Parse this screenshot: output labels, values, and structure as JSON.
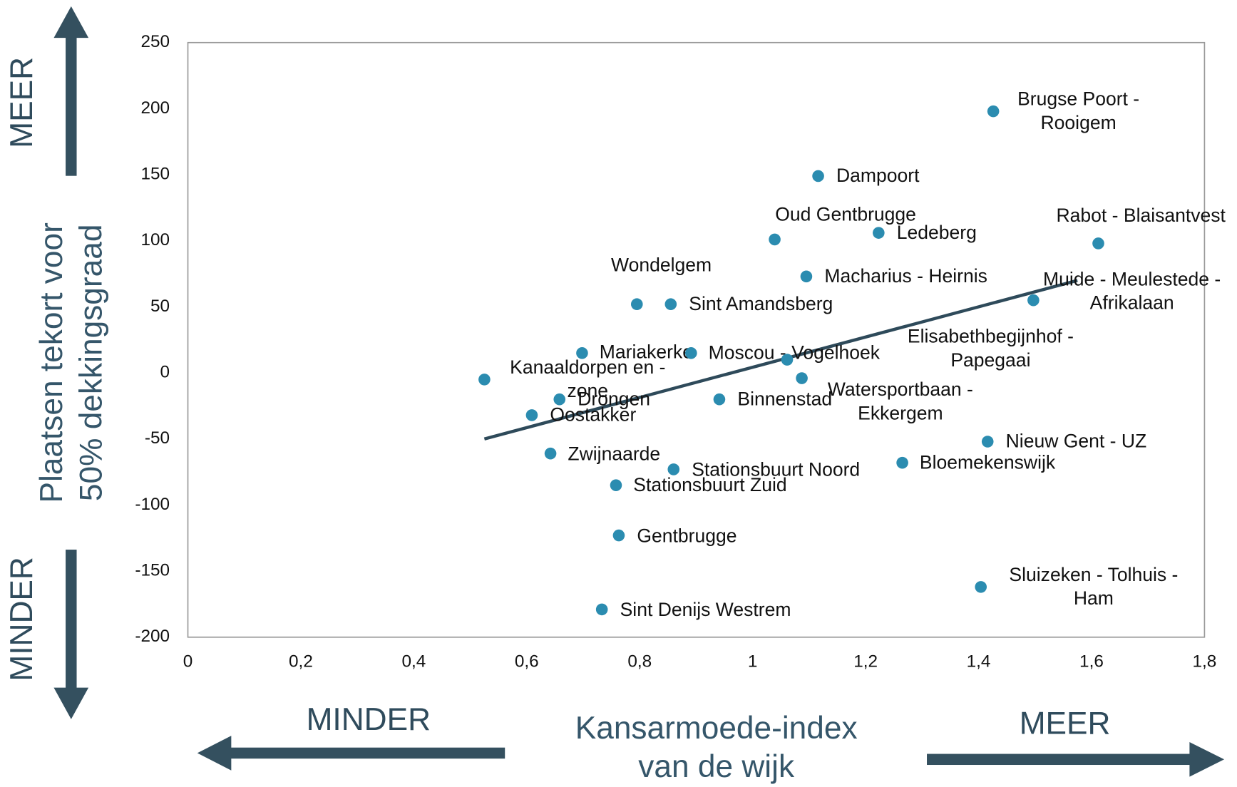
{
  "chart_data": {
    "type": "scatter",
    "x_label": [
      "Kansarmoede-index",
      "van de wijk"
    ],
    "y_label": [
      "Plaatsen tekort voor",
      "50% dekkingsgraad"
    ],
    "annotations": {
      "y_more": "MEER",
      "y_less": "MINDER",
      "x_less": "MINDER",
      "x_more": "MEER"
    },
    "color": "#2b8cb0",
    "trendline": {
      "color": "#2e4a5a",
      "x": [
        0.525,
        1.575
      ],
      "y": [
        -50,
        70
      ]
    },
    "labels": [
      [
        "Brugse Poort -",
        "Rooigem"
      ],
      [
        "Dampoort"
      ],
      [
        "Oud Gentbrugge"
      ],
      [
        "Ledeberg"
      ],
      [
        "Rabot - Blaisantvest"
      ],
      [
        "Macharius - Heirnis"
      ],
      [
        "Wondelgem"
      ],
      [
        "Sint Amandsberg"
      ],
      [
        "Muide - Meulestede -",
        "Afrikalaan"
      ],
      [
        "Mariakerke"
      ],
      [
        "Moscou - Vogelhoek"
      ],
      [
        "Elisabethbegijnhof -",
        "Papegaai"
      ],
      [
        "Watersportbaan -",
        "Ekkergem"
      ],
      [
        "Kanaaldorpen en -",
        "zone"
      ],
      [
        "Drongen"
      ],
      [
        "Binnenstad"
      ],
      [
        "Oostakker"
      ],
      [
        "Nieuw Gent - UZ"
      ],
      [
        "Zwijnaarde"
      ],
      [
        "Stationsbuurt Noord"
      ],
      [
        "Bloemekenswijk"
      ],
      [
        "Stationsbuurt Zuid"
      ],
      [
        "Gentbrugge"
      ],
      [
        "Sluizeken - Tolhuis -",
        "Ham"
      ],
      [
        "Sint Denijs Westrem"
      ]
    ],
    "x": [
      1.426,
      1.116,
      1.039,
      1.223,
      1.612,
      1.095,
      0.795,
      0.855,
      1.497,
      0.698,
      0.891,
      1.061,
      1.087,
      0.525,
      0.658,
      0.941,
      0.609,
      1.416,
      0.642,
      0.86,
      1.265,
      0.758,
      0.763,
      1.404,
      0.733
    ],
    "values": [
      198,
      149,
      101,
      106,
      98,
      73,
      52,
      52,
      55,
      15,
      15,
      10,
      -4,
      -5,
      -20,
      -20,
      -32,
      -52,
      -61,
      -73,
      -68,
      -85,
      -123,
      -162,
      -179
    ],
    "xlim": [
      0,
      1.8
    ],
    "xticks": [
      0,
      {
        "value": 0.2,
        "label": "0,2"
      },
      {
        "value": 0.4,
        "label": "0,4"
      },
      {
        "value": 0.6,
        "label": "0,6"
      },
      {
        "value": 0.8,
        "label": "0,8"
      },
      1,
      {
        "value": 1.2,
        "label": "1,2"
      },
      {
        "value": 1.4,
        "label": "1,4"
      },
      {
        "value": 1.6,
        "label": "1,6"
      },
      {
        "value": 1.8,
        "label": "1,8"
      }
    ],
    "ylim": [
      -200,
      250
    ],
    "yticks": [
      -200,
      -150,
      -100,
      -50,
      0,
      50,
      100,
      150,
      200,
      250
    ]
  }
}
